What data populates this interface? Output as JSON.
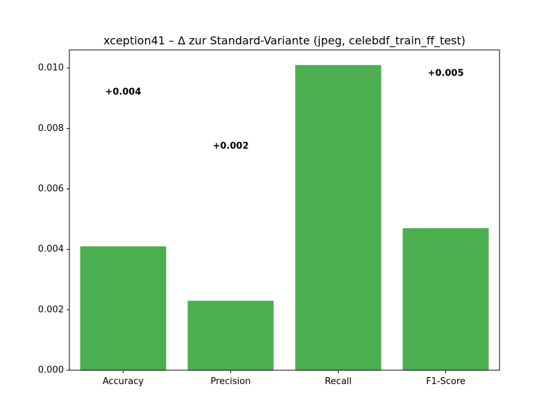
{
  "chart_data": {
    "type": "bar",
    "title": "xception41 – Δ zur Standard-Variante (jpeg, celebdf_train_ff_test)",
    "xlabel": "",
    "ylabel": "",
    "categories": [
      "Accuracy",
      "Precision",
      "Recall",
      "F1-Score"
    ],
    "values": [
      0.0041,
      0.0023,
      0.0101,
      0.0047
    ],
    "data_labels": [
      "+0.004",
      "+0.002",
      "",
      "+0.005"
    ],
    "ylim": [
      0,
      0.0106
    ],
    "yticks": [
      0.0,
      0.002,
      0.004,
      0.006,
      0.008,
      0.01
    ],
    "ytick_labels": [
      "0.000",
      "0.002",
      "0.004",
      "0.006",
      "0.008",
      "0.010"
    ],
    "bar_color": "#4caf50",
    "grid": false,
    "legend": "none"
  }
}
